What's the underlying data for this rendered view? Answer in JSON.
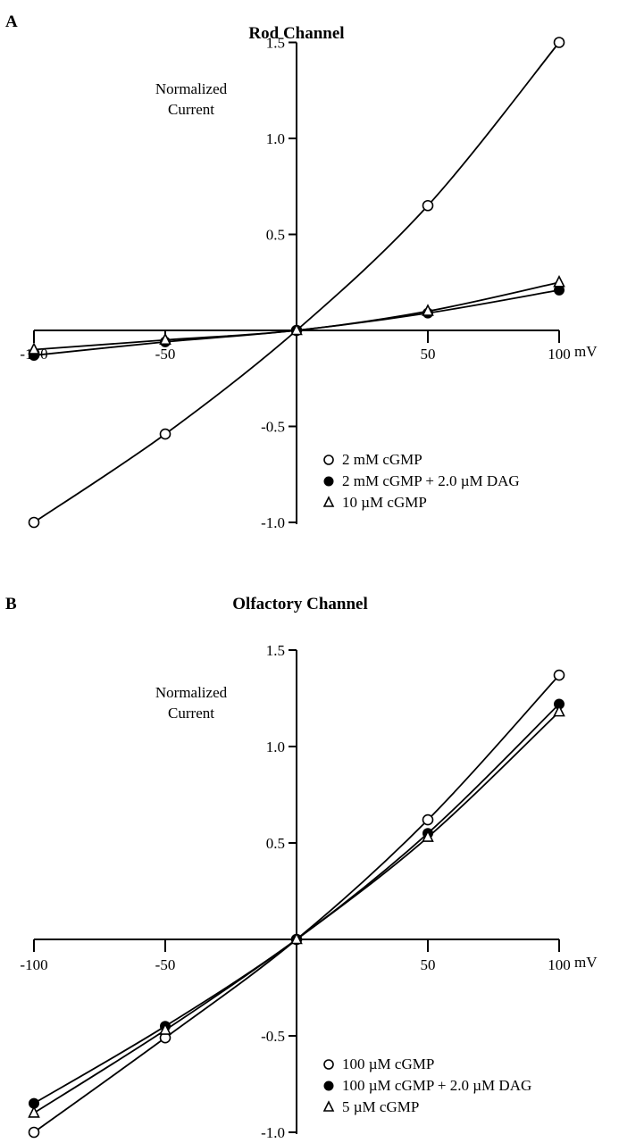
{
  "chart_data": [
    {
      "type": "line",
      "panel_label": "A",
      "title": "Rod Channel",
      "ylabel": [
        "Normalized",
        "Current"
      ],
      "xunit": "mV",
      "xlim": [
        -100,
        100
      ],
      "ylim": [
        -1.0,
        1.5
      ],
      "x_ticks": [
        -100,
        -50,
        50,
        100
      ],
      "x_tick_labels": [
        "-100",
        "-50",
        "50",
        "100"
      ],
      "y_ticks": [
        1.5,
        1.0,
        0.5,
        -0.5,
        -1.0
      ],
      "y_tick_labels": [
        "1.5",
        "1.0",
        "0.5",
        "-0.5",
        "-1.0"
      ],
      "grid": false,
      "legend_position": "bottom-right",
      "x": [
        -100,
        -50,
        0,
        50,
        100
      ],
      "series": [
        {
          "name": "2 mM cGMP",
          "marker": "open-circle",
          "values": [
            -1.0,
            -0.54,
            0,
            0.65,
            1.5
          ]
        },
        {
          "name": "2 mM cGMP + 2.0 µM DAG",
          "marker": "filled-circle",
          "values": [
            -0.13,
            -0.06,
            0,
            0.09,
            0.21
          ]
        },
        {
          "name": "10 µM cGMP",
          "marker": "open-triangle",
          "values": [
            -0.1,
            -0.05,
            0,
            0.1,
            0.25
          ]
        }
      ]
    },
    {
      "type": "line",
      "panel_label": "B",
      "title": "Olfactory Channel",
      "ylabel": [
        "Normalized",
        "Current"
      ],
      "xunit": "mV",
      "xlim": [
        -100,
        100
      ],
      "ylim": [
        -1.0,
        1.5
      ],
      "x_ticks": [
        -100,
        -50,
        50,
        100
      ],
      "x_tick_labels": [
        "-100",
        "-50",
        "50",
        "100"
      ],
      "y_ticks": [
        1.5,
        1.0,
        0.5,
        -0.5,
        -1.0
      ],
      "y_tick_labels": [
        "1.5",
        "1.0",
        "0.5",
        "-0.5",
        "-1.0"
      ],
      "grid": false,
      "legend_position": "bottom-right",
      "x": [
        -100,
        -50,
        0,
        50,
        100
      ],
      "series": [
        {
          "name": "100 µM cGMP",
          "marker": "open-circle",
          "values": [
            -1.0,
            -0.51,
            0,
            0.62,
            1.37
          ]
        },
        {
          "name": "100 µM cGMP + 2.0 µM DAG",
          "marker": "filled-circle",
          "values": [
            -0.85,
            -0.45,
            0,
            0.55,
            1.22
          ]
        },
        {
          "name": "5 µM cGMP",
          "marker": "open-triangle",
          "values": [
            -0.9,
            -0.47,
            0,
            0.53,
            1.18
          ]
        }
      ]
    }
  ]
}
